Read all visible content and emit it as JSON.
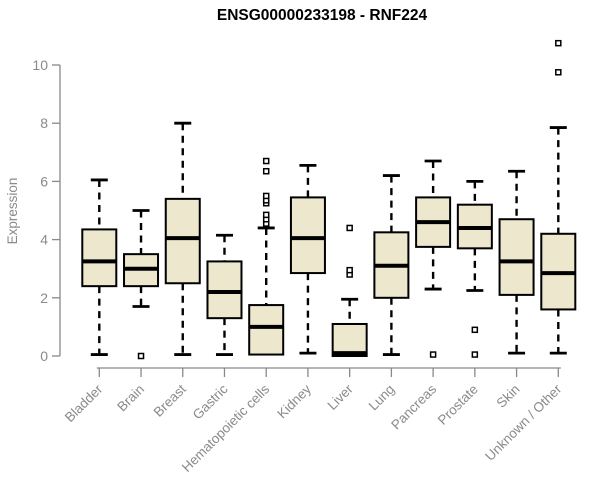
{
  "title": "ENSG00000233198 - RNF224",
  "chart_data": {
    "type": "boxplot",
    "title": "ENSG00000233198 - RNF224",
    "xlabel": "",
    "ylabel": "Expression",
    "ylim": [
      0,
      10
    ],
    "yticks": [
      0,
      2,
      4,
      6,
      8,
      10
    ],
    "grid": false,
    "legend": "none",
    "categories": [
      "Bladder",
      "Brain",
      "Breast",
      "Gastric",
      "Hematopoietic cells",
      "Kidney",
      "Liver",
      "Lung",
      "Pancreas",
      "Prostate",
      "Skin",
      "Unknown / Other"
    ],
    "series": [
      {
        "name": "Bladder",
        "low": 0.05,
        "q1": 2.4,
        "median": 3.25,
        "q3": 4.35,
        "high": 6.05,
        "outliers": []
      },
      {
        "name": "Brain",
        "low": 1.7,
        "q1": 2.4,
        "median": 3.0,
        "q3": 3.5,
        "high": 5.0,
        "outliers": [
          0.0
        ]
      },
      {
        "name": "Breast",
        "low": 0.05,
        "q1": 2.5,
        "median": 4.05,
        "q3": 5.4,
        "high": 8.0,
        "outliers": []
      },
      {
        "name": "Gastric",
        "low": 0.05,
        "q1": 1.3,
        "median": 2.2,
        "q3": 3.25,
        "high": 4.15,
        "outliers": []
      },
      {
        "name": "Hematopoietic cells",
        "low": 0.05,
        "q1": 0.05,
        "median": 1.0,
        "q3": 1.75,
        "high": 4.4,
        "outliers": [
          4.55,
          4.7,
          4.85,
          5.25,
          5.35,
          5.5,
          6.35,
          6.7
        ]
      },
      {
        "name": "Kidney",
        "low": 0.1,
        "q1": 2.85,
        "median": 4.05,
        "q3": 5.45,
        "high": 6.55,
        "outliers": []
      },
      {
        "name": "Liver",
        "low": 0.0,
        "q1": 0.0,
        "median": 0.1,
        "q3": 1.1,
        "high": 1.95,
        "outliers": [
          2.8,
          2.95,
          4.4
        ]
      },
      {
        "name": "Lung",
        "low": 0.05,
        "q1": 2.0,
        "median": 3.1,
        "q3": 4.25,
        "high": 6.2,
        "outliers": []
      },
      {
        "name": "Pancreas",
        "low": 2.3,
        "q1": 3.75,
        "median": 4.6,
        "q3": 5.45,
        "high": 6.7,
        "outliers": [
          0.05
        ]
      },
      {
        "name": "Prostate",
        "low": 2.25,
        "q1": 3.7,
        "median": 4.4,
        "q3": 5.2,
        "high": 6.0,
        "outliers": [
          0.9,
          0.05
        ]
      },
      {
        "name": "Skin",
        "low": 0.1,
        "q1": 2.1,
        "median": 3.25,
        "q3": 4.7,
        "high": 6.35,
        "outliers": []
      },
      {
        "name": "Unknown / Other",
        "low": 0.1,
        "q1": 1.6,
        "median": 2.85,
        "q3": 4.2,
        "high": 7.85,
        "outliers": [
          9.75,
          10.75
        ]
      }
    ],
    "colors": {
      "box_fill": "#EDE8CD",
      "box_stroke": "#000000",
      "median": "#000000",
      "whisker": "#000000",
      "outlier_stroke": "#000000",
      "outlier_fill": "#ffffff",
      "axis": "#898989",
      "tick_label": "#8a8a8a",
      "title": "#000000",
      "background": "#ffffff"
    }
  }
}
